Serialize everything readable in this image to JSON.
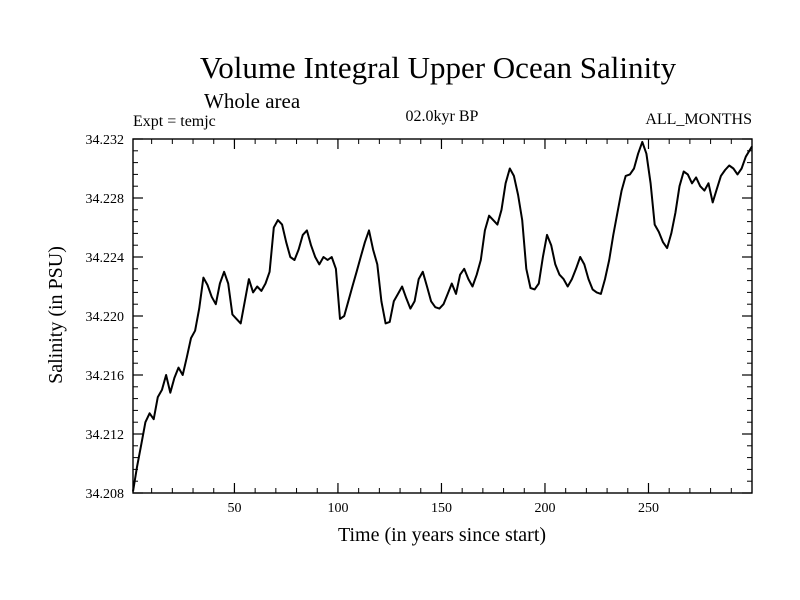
{
  "chart_data": {
    "type": "line",
    "title": "Volume Integral Upper Ocean Salinity",
    "subtitle": "Whole area",
    "annotations": {
      "experiment": "Expt = temjc",
      "period": "02.0kyr BP",
      "months": "ALL_MONTHS"
    },
    "xlabel": "Time (in years since start)",
    "ylabel": "Salinity (in PSU)",
    "xlim": [
      1,
      300
    ],
    "ylim": [
      34.208,
      34.232
    ],
    "xticks": [
      50,
      100,
      150,
      200,
      250
    ],
    "xtick_labels": [
      "50",
      "100",
      "150",
      "200",
      "250"
    ],
    "yticks": [
      34.208,
      34.212,
      34.216,
      34.22,
      34.224,
      34.228,
      34.232
    ],
    "ytick_labels": [
      "34.208",
      "34.212",
      "34.216",
      "34.220",
      "34.224",
      "34.228",
      "34.232"
    ],
    "series": [
      {
        "name": "Salinity",
        "color": "#000000",
        "x": [
          1,
          3,
          5,
          7,
          9,
          11,
          13,
          15,
          17,
          19,
          21,
          23,
          25,
          27,
          29,
          31,
          33,
          35,
          37,
          39,
          41,
          43,
          45,
          47,
          49,
          51,
          53,
          55,
          57,
          59,
          61,
          63,
          65,
          67,
          69,
          71,
          73,
          75,
          77,
          79,
          81,
          83,
          85,
          87,
          89,
          91,
          93,
          95,
          97,
          99,
          101,
          103,
          105,
          107,
          109,
          111,
          113,
          115,
          117,
          119,
          121,
          123,
          125,
          127,
          129,
          131,
          133,
          135,
          137,
          139,
          141,
          143,
          145,
          147,
          149,
          151,
          153,
          155,
          157,
          159,
          161,
          163,
          165,
          167,
          169,
          171,
          173,
          175,
          177,
          179,
          181,
          183,
          185,
          187,
          189,
          191,
          193,
          195,
          197,
          199,
          201,
          203,
          205,
          207,
          209,
          211,
          213,
          215,
          217,
          219,
          221,
          223,
          225,
          227,
          229,
          231,
          233,
          235,
          237,
          239,
          241,
          243,
          245,
          247,
          249,
          251,
          253,
          255,
          257,
          259,
          261,
          263,
          265,
          267,
          269,
          271,
          273,
          275,
          277,
          279,
          281,
          283,
          285,
          287,
          289,
          291,
          293,
          295,
          297,
          300
        ],
        "values": [
          34.2081,
          34.2098,
          34.2113,
          34.2128,
          34.2134,
          34.213,
          34.2145,
          34.215,
          34.216,
          34.2148,
          34.2158,
          34.2165,
          34.216,
          34.2172,
          34.2185,
          34.219,
          34.2205,
          34.2226,
          34.2221,
          34.2213,
          34.2208,
          34.2222,
          34.223,
          34.2222,
          34.2201,
          34.2198,
          34.2195,
          34.221,
          34.2225,
          34.2216,
          34.222,
          34.2217,
          34.2222,
          34.223,
          34.226,
          34.2265,
          34.2262,
          34.225,
          34.224,
          34.2238,
          34.2245,
          34.2255,
          34.2258,
          34.2248,
          34.224,
          34.2235,
          34.224,
          34.2238,
          34.224,
          34.2232,
          34.2198,
          34.22,
          34.221,
          34.222,
          34.223,
          34.224,
          34.225,
          34.2258,
          34.2245,
          34.2235,
          34.221,
          34.2195,
          34.2196,
          34.221,
          34.2215,
          34.222,
          34.2212,
          34.2205,
          34.221,
          34.2225,
          34.223,
          34.222,
          34.221,
          34.2206,
          34.2205,
          34.2208,
          34.2215,
          34.2222,
          34.2215,
          34.2228,
          34.2232,
          34.2225,
          34.222,
          34.2228,
          34.2238,
          34.2258,
          34.2268,
          34.2265,
          34.2262,
          34.2272,
          34.229,
          34.23,
          34.2295,
          34.2282,
          34.2265,
          34.2232,
          34.2219,
          34.2218,
          34.2222,
          34.224,
          34.2255,
          34.2248,
          34.2235,
          34.2228,
          34.2225,
          34.222,
          34.2225,
          34.2232,
          34.224,
          34.2235,
          34.2225,
          34.2218,
          34.2216,
          34.2215,
          34.2225,
          34.2238,
          34.2255,
          34.227,
          34.2285,
          34.2295,
          34.2296,
          34.23,
          34.231,
          34.2318,
          34.231,
          34.229,
          34.2262,
          34.2257,
          34.225,
          34.2246,
          34.2256,
          34.227,
          34.2288,
          34.2298,
          34.2296,
          34.229,
          34.2294,
          34.2288,
          34.2285,
          34.229,
          34.2277,
          34.2286,
          34.2295,
          34.2299,
          34.2302,
          34.23,
          34.2296,
          34.23,
          34.2308,
          34.2315
        ]
      }
    ]
  }
}
